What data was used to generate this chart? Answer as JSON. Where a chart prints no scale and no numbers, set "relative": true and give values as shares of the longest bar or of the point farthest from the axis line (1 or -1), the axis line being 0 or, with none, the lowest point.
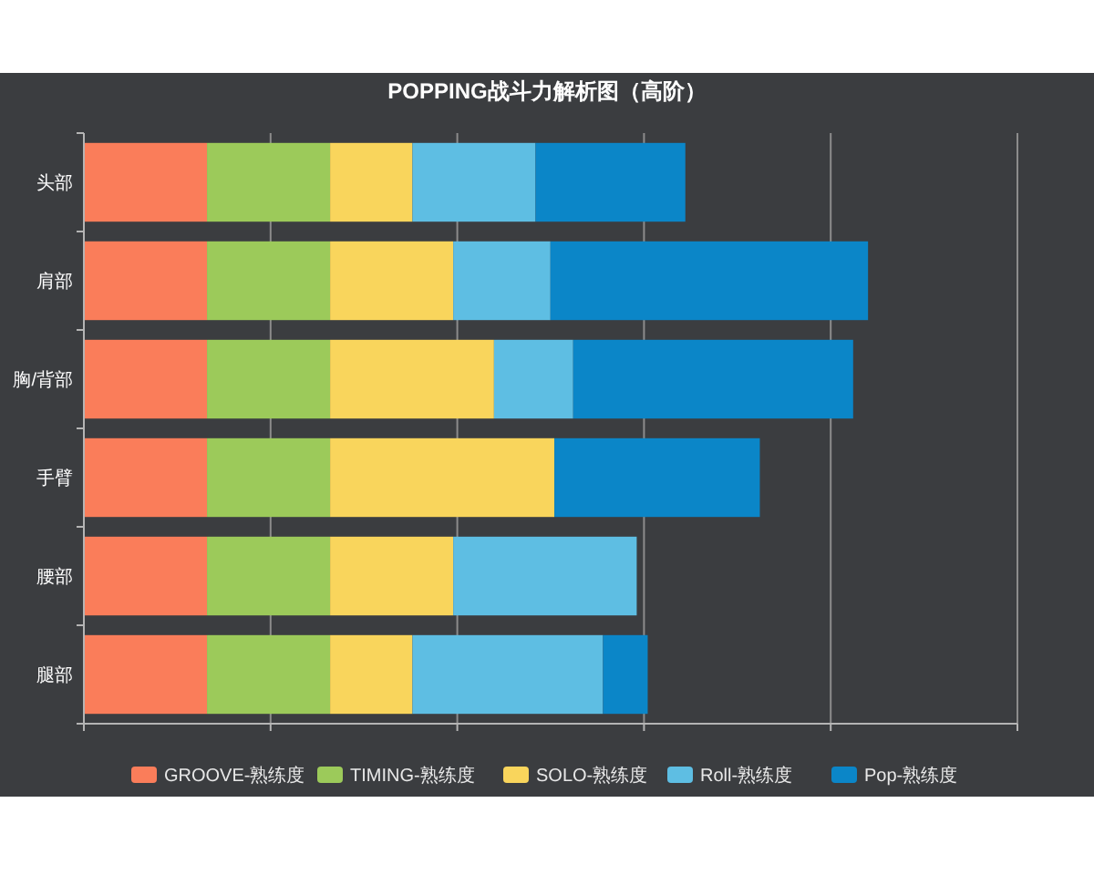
{
  "chart_data": {
    "type": "bar",
    "title": "POPPING战斗力解析图（高阶）",
    "orientation": "horizontal",
    "stacked": true,
    "relative": true,
    "categories": [
      "头部",
      "肩部",
      "胸/背部",
      "手臂",
      "腰部",
      "腿部"
    ],
    "series": [
      {
        "name": "GROOVE-熟练度",
        "color": "#fa7d5a",
        "values": [
          0.157,
          0.157,
          0.157,
          0.157,
          0.157,
          0.157
        ]
      },
      {
        "name": "TIMING-熟练度",
        "color": "#9cca5a",
        "values": [
          0.157,
          0.157,
          0.157,
          0.157,
          0.157,
          0.157
        ]
      },
      {
        "name": "SOLO-熟练度",
        "color": "#f9d55c",
        "values": [
          0.105,
          0.157,
          0.209,
          0.286,
          0.157,
          0.105
        ]
      },
      {
        "name": "Roll-熟练度",
        "color": "#5ebee3",
        "values": [
          0.157,
          0.124,
          0.101,
          0,
          0.234,
          0.243
        ]
      },
      {
        "name": "Pop-熟练度",
        "color": "#0b86c8",
        "values": [
          0.191,
          0.405,
          0.357,
          0.262,
          0,
          0.057
        ]
      }
    ],
    "grid": "x",
    "legend": "bottom"
  }
}
